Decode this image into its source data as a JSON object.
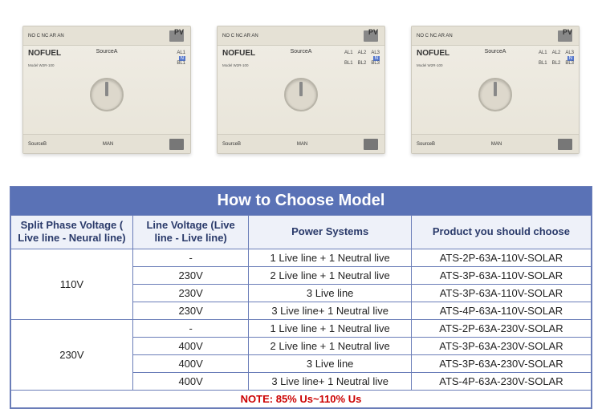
{
  "products": {
    "brand": "NOFUEL",
    "model_prefix": "Model W2R-100",
    "top_labels": "NO C NC AR AN",
    "source_a_top": "SourceA",
    "source_b_bot": "SourceB",
    "pv_label": "PV",
    "man_label": "MAN",
    "p1": {
      "al": [
        "AL1"
      ],
      "bl": [
        "BL1"
      ],
      "n": "N"
    },
    "p2": {
      "al": [
        "AL1",
        "AL2",
        "AL3"
      ],
      "bl": [
        "BL1",
        "BL2",
        "BL3"
      ],
      "n": "N"
    },
    "p3": {
      "al": [
        "AL1",
        "AL2",
        "AL3"
      ],
      "bl": [
        "BL1",
        "BL2",
        "BL3"
      ],
      "n": "N"
    }
  },
  "table": {
    "title": "How to Choose Model",
    "title_bg": "#5a72b6",
    "title_color": "#ffffff",
    "header_bg": "#eef1f9",
    "header_color": "#2a3a6a",
    "border_color": "#6a7db8",
    "note_color": "#cc0000",
    "columns": [
      "Split Phase Voltage\n( Live line - Neural line)",
      "Line Voltage\n(Live line - Live line)",
      "Power Systems",
      "Product you should choose"
    ],
    "groups": [
      {
        "voltage": "110V",
        "rows": [
          {
            "line": "-",
            "power": "1 Live line + 1 Neutral live",
            "product": "ATS-2P-63A-110V-SOLAR"
          },
          {
            "line": "230V",
            "power": "2 Live line + 1 Neutral live",
            "product": "ATS-3P-63A-110V-SOLAR"
          },
          {
            "line": "230V",
            "power": "3 Live line",
            "product": "ATS-3P-63A-110V-SOLAR"
          },
          {
            "line": "230V",
            "power": "3 Live line+ 1 Neutral live",
            "product": "ATS-4P-63A-110V-SOLAR"
          }
        ]
      },
      {
        "voltage": "230V",
        "rows": [
          {
            "line": "-",
            "power": "1 Live line + 1 Neutral live",
            "product": "ATS-2P-63A-230V-SOLAR"
          },
          {
            "line": "400V",
            "power": "2 Live line + 1 Neutral live",
            "product": "ATS-3P-63A-230V-SOLAR"
          },
          {
            "line": "400V",
            "power": "3 Live line",
            "product": "ATS-3P-63A-230V-SOLAR"
          },
          {
            "line": "400V",
            "power": "3 Live line+ 1 Neutral live",
            "product": "ATS-4P-63A-230V-SOLAR"
          }
        ]
      }
    ],
    "note": "NOTE: 85% Us~110% Us"
  }
}
